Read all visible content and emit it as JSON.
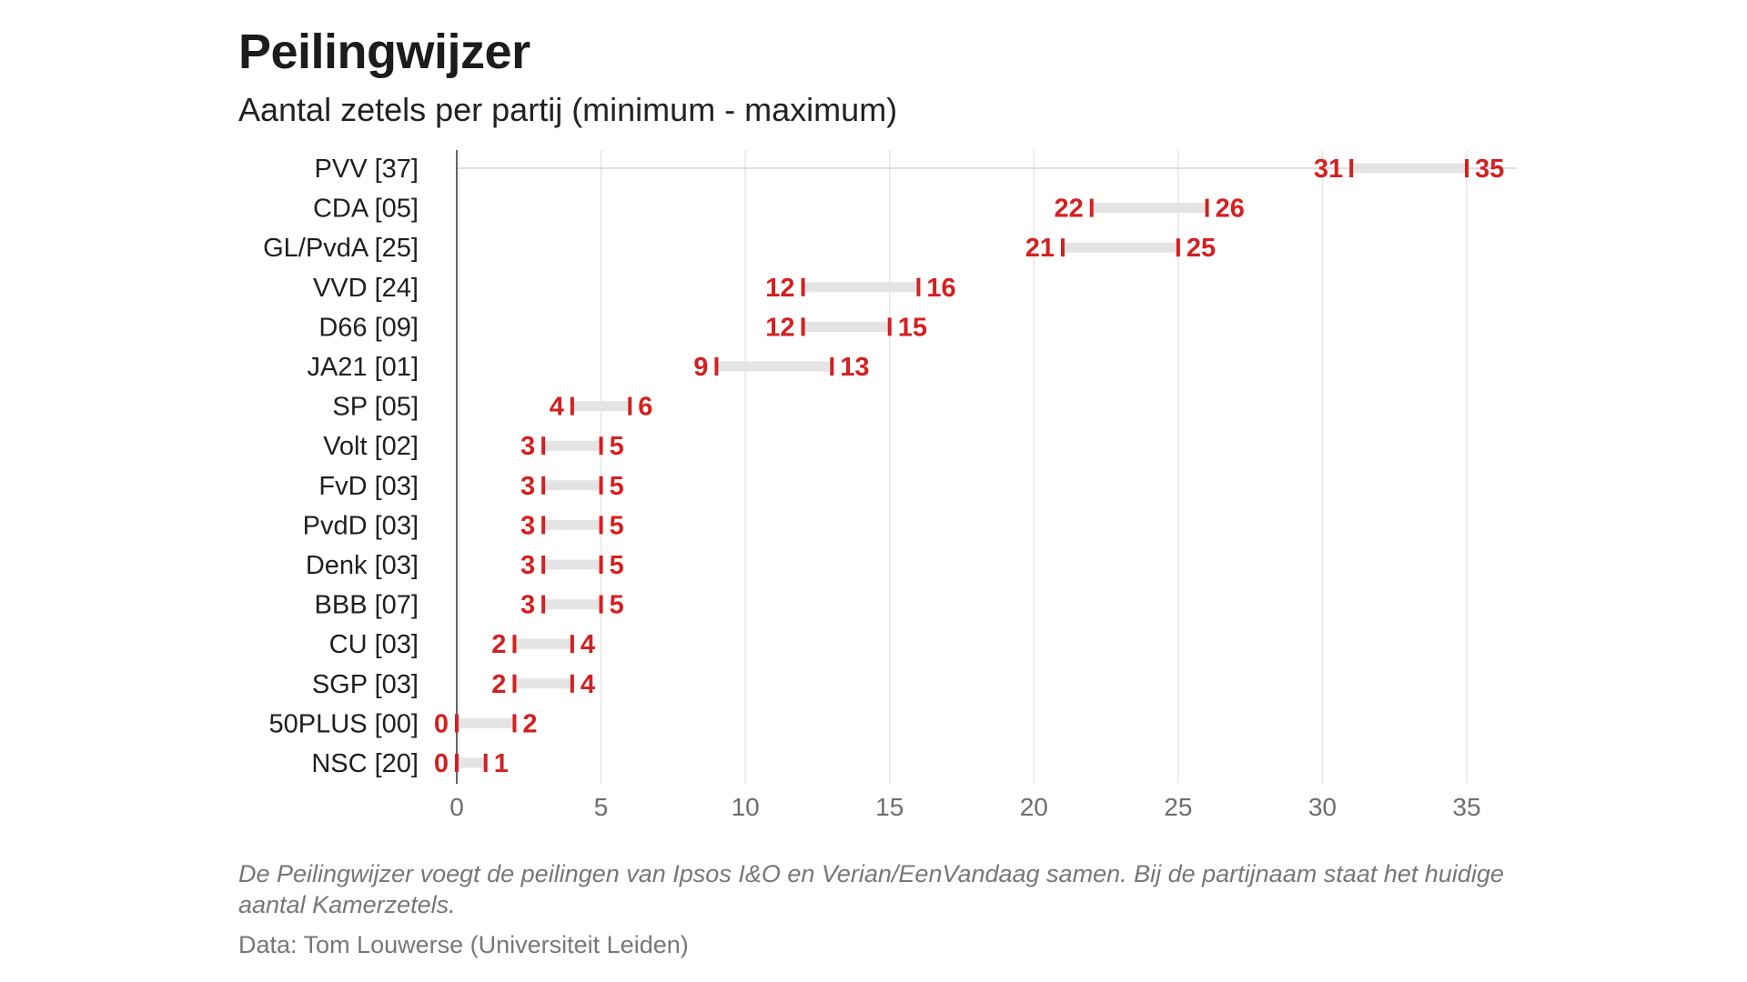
{
  "chart_data": {
    "type": "range-dot",
    "title": "Peilingwijzer",
    "subtitle": "Aantal zetels per partij (minimum - maximum)",
    "xlim": [
      0,
      35
    ],
    "xticks": [
      0,
      5,
      10,
      15,
      20,
      25,
      30,
      35
    ],
    "xtick_labels": [
      "0",
      "5",
      "10",
      "15",
      "20",
      "25",
      "30",
      "35"
    ],
    "grid": true,
    "colors": {
      "range_bar": "#e4e4e4",
      "marker": "#d42020",
      "grid": "#e6e6e6",
      "axis": "#333333"
    },
    "parties": [
      {
        "label": "PVV [37]",
        "min": 31,
        "max": 35
      },
      {
        "label": "CDA [05]",
        "min": 22,
        "max": 26
      },
      {
        "label": "GL/PvdA [25]",
        "min": 21,
        "max": 25
      },
      {
        "label": "VVD [24]",
        "min": 12,
        "max": 16
      },
      {
        "label": "D66 [09]",
        "min": 12,
        "max": 15
      },
      {
        "label": "JA21 [01]",
        "min": 9,
        "max": 13
      },
      {
        "label": "SP [05]",
        "min": 4,
        "max": 6
      },
      {
        "label": "Volt [02]",
        "min": 3,
        "max": 5
      },
      {
        "label": "FvD [03]",
        "min": 3,
        "max": 5
      },
      {
        "label": "PvdD [03]",
        "min": 3,
        "max": 5
      },
      {
        "label": "Denk [03]",
        "min": 3,
        "max": 5
      },
      {
        "label": "BBB [07]",
        "min": 3,
        "max": 5
      },
      {
        "label": "CU [03]",
        "min": 2,
        "max": 4
      },
      {
        "label": "SGP [03]",
        "min": 2,
        "max": 4
      },
      {
        "label": "50PLUS [00]",
        "min": 0,
        "max": 2
      },
      {
        "label": "NSC [20]",
        "min": 0,
        "max": 1
      }
    ]
  },
  "footer": {
    "note": "De Peilingwijzer voegt de peilingen van Ipsos I&O en Verian/EenVandaag samen. Bij de partijnaam staat het huidige aantal Kamerzetels.",
    "source": "Data: Tom Louwerse (Universiteit Leiden)"
  }
}
